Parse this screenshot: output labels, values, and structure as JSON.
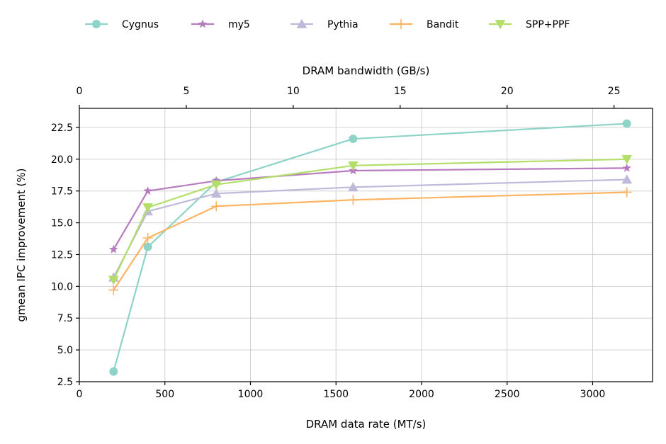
{
  "chart_data": {
    "type": "line",
    "xlabel": "DRAM data rate (MT/s)",
    "x2label": "DRAM bandwidth (GB/s)",
    "ylabel": "gmean IPC improvement (%)",
    "xlim": [
      0,
      3350
    ],
    "ylim": [
      2.5,
      24.0
    ],
    "x2lim": [
      0,
      26.8
    ],
    "x_ticks": [
      0,
      500,
      1000,
      1500,
      2000,
      2500,
      3000
    ],
    "x2_ticks": [
      0,
      5,
      10,
      15,
      20,
      25
    ],
    "y_ticks": [
      2.5,
      5.0,
      7.5,
      10.0,
      12.5,
      15.0,
      17.5,
      20.0,
      22.5
    ],
    "y_tick_labels": [
      "2.5",
      "5.0",
      "7.5",
      "10.0",
      "12.5",
      "15.0",
      "17.5",
      "20.0",
      "22.5"
    ],
    "grid": true,
    "legend_placement": "top-center",
    "x": [
      200,
      400,
      800,
      1600,
      3200
    ],
    "series": [
      {
        "name": "Cygnus",
        "values": [
          3.3,
          13.1,
          18.2,
          21.6,
          22.8
        ],
        "color": "#8dd3c7",
        "marker": "circle"
      },
      {
        "name": "my5",
        "values": [
          12.9,
          17.5,
          18.3,
          19.1,
          19.3
        ],
        "color": "#b67cbf",
        "marker": "star"
      },
      {
        "name": "Pythia",
        "values": [
          10.7,
          15.9,
          17.3,
          17.8,
          18.4
        ],
        "color": "#bebada",
        "marker": "triangle-up"
      },
      {
        "name": "Bandit",
        "values": [
          9.7,
          13.8,
          16.3,
          16.8,
          17.4
        ],
        "color": "#fdb462",
        "marker": "plus"
      },
      {
        "name": "SPP+PPF",
        "values": [
          10.5,
          16.2,
          18.0,
          19.5,
          20.0
        ],
        "color": "#b3de69",
        "marker": "triangle-down"
      }
    ]
  }
}
